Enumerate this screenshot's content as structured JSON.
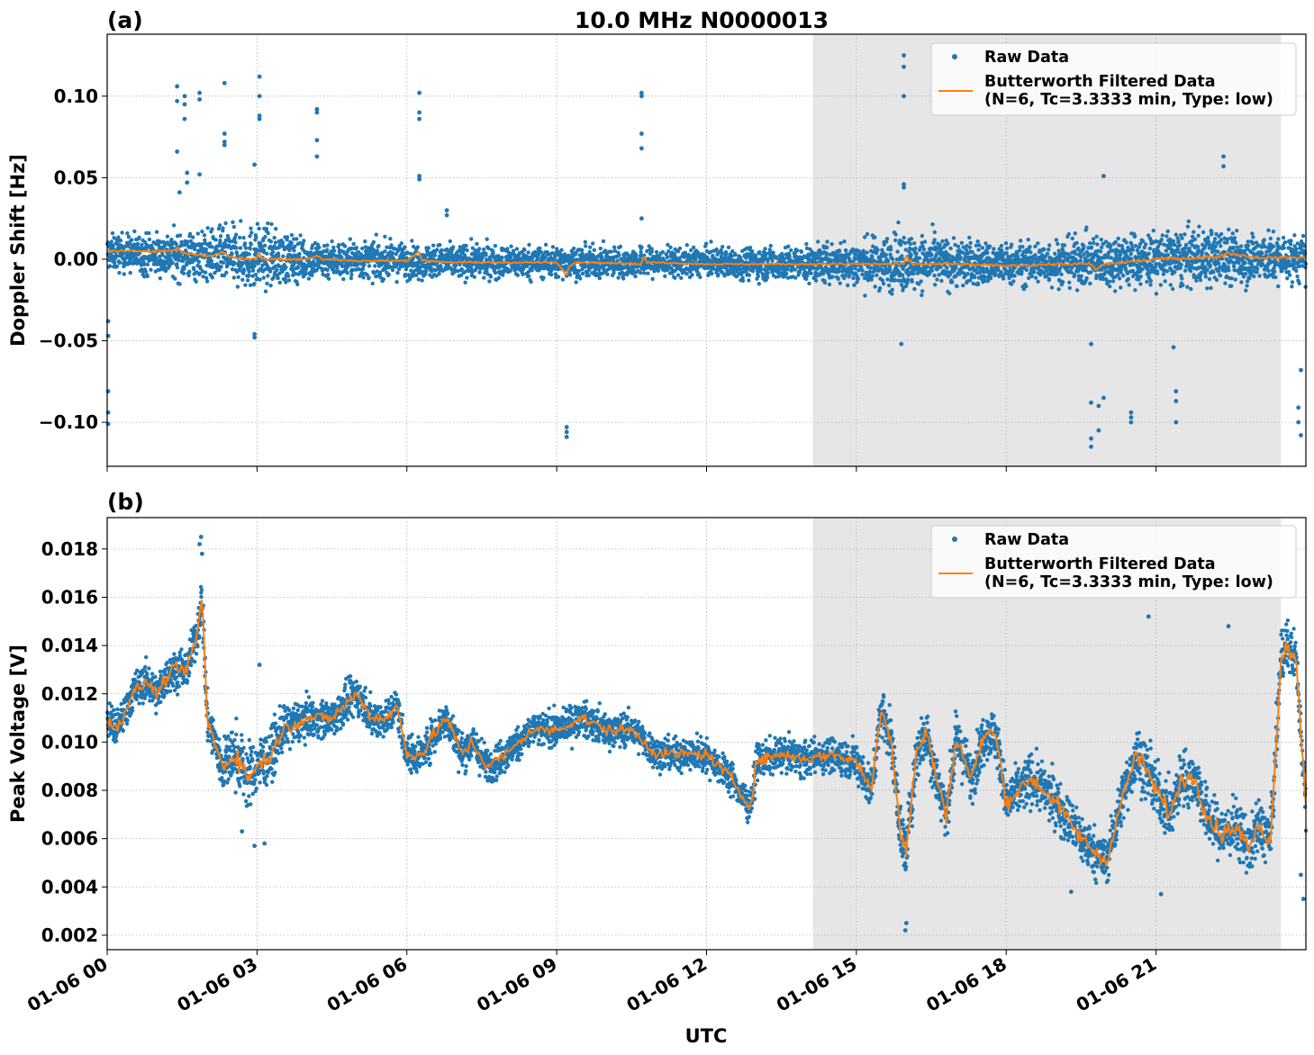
{
  "figure": {
    "title": "10.0 MHz N0000013",
    "xlabel": "UTC"
  },
  "colors": {
    "raw": "#1f77b4",
    "filtered": "#ff7f0e",
    "shade": "#e6e6e6",
    "grid": "#b0b0b0"
  },
  "chart_data": [
    {
      "type": "scatter",
      "panel_label": "(a)",
      "title": "10.0 MHz N0000013",
      "xlabel": "",
      "ylabel": "Doppler Shift [Hz]",
      "x_unit": "hours UTC on 01-06",
      "xlim": [
        0,
        24
      ],
      "ylim": [
        -0.127,
        0.138
      ],
      "yticks": [
        0.1,
        0.05,
        0.0,
        -0.05,
        -0.1
      ],
      "ytick_labels": [
        "0.10",
        "0.05",
        "0.00",
        "−0.05",
        "−0.10"
      ],
      "grid": true,
      "legend_position": "top-right",
      "shaded_region_x": [
        14.13,
        23.5
      ],
      "series": [
        {
          "name": "Raw Data",
          "kind": "points",
          "band": {
            "x": [
              0,
              2,
              3,
              4,
              6,
              9,
              12,
              14,
              15.9,
              18,
              20,
              22,
              24
            ],
            "center": [
              0.004,
              0.002,
              0.001,
              0.0,
              -0.001,
              -0.002,
              -0.002,
              -0.003,
              -0.002,
              -0.003,
              -0.001,
              0.001,
              0.0
            ],
            "half_width": [
              0.012,
              0.018,
              0.022,
              0.014,
              0.012,
              0.011,
              0.01,
              0.012,
              0.02,
              0.014,
              0.018,
              0.02,
              0.016
            ]
          },
          "outliers": [
            [
              0.02,
              -0.038
            ],
            [
              0.02,
              -0.047
            ],
            [
              0.02,
              -0.081
            ],
            [
              0.02,
              -0.094
            ],
            [
              0.02,
              -0.101
            ],
            [
              1.4,
              0.106
            ],
            [
              1.4,
              0.097
            ],
            [
              1.4,
              0.066
            ],
            [
              1.45,
              0.041
            ],
            [
              1.55,
              0.1
            ],
            [
              1.55,
              0.095
            ],
            [
              1.55,
              0.086
            ],
            [
              1.6,
              0.053
            ],
            [
              1.6,
              0.047
            ],
            [
              1.85,
              0.102
            ],
            [
              1.85,
              0.098
            ],
            [
              1.85,
              0.052
            ],
            [
              2.35,
              0.108
            ],
            [
              2.35,
              0.077
            ],
            [
              2.35,
              0.072
            ],
            [
              2.35,
              0.07
            ],
            [
              2.95,
              0.058
            ],
            [
              3.05,
              0.112
            ],
            [
              3.05,
              0.1
            ],
            [
              3.05,
              0.088
            ],
            [
              3.05,
              0.086
            ],
            [
              2.95,
              -0.046
            ],
            [
              2.95,
              -0.048
            ],
            [
              4.2,
              0.09
            ],
            [
              4.2,
              0.092
            ],
            [
              4.2,
              0.073
            ],
            [
              4.2,
              0.063
            ],
            [
              6.25,
              0.102
            ],
            [
              6.25,
              0.09
            ],
            [
              6.25,
              0.086
            ],
            [
              6.25,
              0.051
            ],
            [
              6.25,
              0.049
            ],
            [
              6.8,
              0.03
            ],
            [
              6.8,
              0.027
            ],
            [
              9.2,
              -0.103
            ],
            [
              9.2,
              -0.106
            ],
            [
              9.2,
              -0.109
            ],
            [
              10.7,
              0.102
            ],
            [
              10.7,
              0.1
            ],
            [
              10.7,
              0.077
            ],
            [
              10.7,
              0.068
            ],
            [
              10.7,
              0.025
            ],
            [
              15.95,
              0.125
            ],
            [
              15.95,
              0.118
            ],
            [
              15.95,
              0.1
            ],
            [
              15.95,
              0.046
            ],
            [
              15.95,
              0.044
            ],
            [
              15.9,
              -0.052
            ],
            [
              19.7,
              -0.052
            ],
            [
              19.7,
              -0.088
            ],
            [
              19.7,
              -0.11
            ],
            [
              19.7,
              -0.115
            ],
            [
              19.85,
              -0.09
            ],
            [
              19.85,
              -0.105
            ],
            [
              19.95,
              0.051
            ],
            [
              19.95,
              -0.085
            ],
            [
              20.5,
              -0.097
            ],
            [
              20.5,
              -0.094
            ],
            [
              20.5,
              -0.1
            ],
            [
              21.4,
              -0.081
            ],
            [
              21.4,
              -0.087
            ],
            [
              21.4,
              -0.1
            ],
            [
              21.35,
              -0.054
            ],
            [
              22.35,
              0.063
            ],
            [
              22.35,
              0.057
            ],
            [
              23.9,
              -0.068
            ],
            [
              23.85,
              -0.091
            ],
            [
              23.85,
              -0.1
            ],
            [
              23.9,
              -0.108
            ]
          ]
        },
        {
          "name": "Butterworth Filtered Data\n(N=6, Tc=3.3333 min, Type: low)",
          "kind": "line",
          "x": [
            0,
            0.5,
            1,
            1.3,
            1.4,
            1.5,
            2,
            2.35,
            2.5,
            3,
            3.05,
            3.1,
            4,
            4.2,
            4.3,
            5,
            6,
            6.25,
            6.3,
            6.4,
            7,
            8,
            9,
            9.2,
            9.25,
            9.4,
            10,
            10.7,
            10.75,
            10.8,
            11,
            12,
            13,
            14,
            15,
            15.95,
            16,
            16.1,
            17,
            18,
            19,
            19.7,
            19.8,
            19.9,
            20,
            21,
            22,
            22.35,
            22.4,
            23,
            24
          ],
          "y": [
            0.005,
            0.005,
            0.005,
            0.005,
            0.007,
            0.004,
            0.002,
            0.004,
            0.001,
            0.0,
            0.005,
            0.0,
            0.0,
            0.002,
            0.0,
            -0.001,
            -0.001,
            0.005,
            -0.001,
            -0.001,
            -0.002,
            -0.002,
            -0.002,
            -0.01,
            -0.004,
            -0.002,
            -0.002,
            -0.003,
            0.002,
            -0.002,
            -0.002,
            -0.003,
            -0.003,
            -0.003,
            -0.003,
            -0.003,
            0.002,
            -0.003,
            -0.003,
            -0.004,
            -0.003,
            -0.003,
            -0.007,
            -0.004,
            -0.003,
            0.0,
            0.001,
            0.002,
            0.004,
            0.001,
            0.001
          ]
        }
      ]
    },
    {
      "type": "scatter",
      "panel_label": "(b)",
      "title": "",
      "xlabel": "UTC",
      "ylabel": "Peak Voltage [V]",
      "x_unit": "hours UTC on 01-06",
      "xlim": [
        0,
        24
      ],
      "ylim": [
        0.0014,
        0.0193
      ],
      "yticks": [
        0.018,
        0.016,
        0.014,
        0.012,
        0.01,
        0.008,
        0.006,
        0.004,
        0.002
      ],
      "ytick_labels": [
        "0.018",
        "0.016",
        "0.014",
        "0.012",
        "0.010",
        "0.008",
        "0.006",
        "0.004",
        "0.002"
      ],
      "xticks": [
        0,
        3,
        6,
        9,
        12,
        15,
        18,
        21
      ],
      "xtick_labels": [
        "01-06 00",
        "01-06 03",
        "01-06 06",
        "01-06 09",
        "01-06 12",
        "01-06 15",
        "01-06 18",
        "01-06 21"
      ],
      "grid": true,
      "legend_position": "top-right",
      "shaded_region_x": [
        14.13,
        23.5
      ],
      "series": [
        {
          "name": "Raw Data",
          "kind": "points",
          "band": {
            "x": [
              0,
              0.2,
              0.5,
              0.8,
              1.0,
              1.3,
              1.6,
              1.8,
              1.9,
              2.0,
              2.3,
              2.6,
              2.8,
              3.0,
              3.3,
              3.5,
              4.0,
              4.5,
              5.0,
              5.3,
              5.6,
              5.8,
              6.0,
              6.3,
              6.6,
              6.8,
              7.1,
              7.3,
              7.6,
              8.0,
              8.5,
              9.0,
              9.5,
              10.0,
              10.5,
              11.0,
              11.5,
              12.0,
              12.5,
              12.8,
              12.9,
              13.0,
              13.5,
              14.0,
              14.5,
              15.0,
              15.3,
              15.5,
              15.7,
              15.9,
              16.0,
              16.2,
              16.4,
              16.6,
              16.8,
              17.0,
              17.3,
              17.6,
              17.8,
              18.0,
              18.5,
              19.0,
              19.5,
              20.0,
              20.3,
              20.6,
              20.9,
              21.0,
              21.3,
              21.5,
              21.8,
              22.0,
              22.3,
              22.6,
              22.9,
              23.0,
              23.3,
              23.5,
              23.6,
              23.8,
              24.0
            ],
            "center": [
              0.011,
              0.0105,
              0.012,
              0.0125,
              0.012,
              0.013,
              0.013,
              0.0145,
              0.016,
              0.011,
              0.009,
              0.0095,
              0.0085,
              0.009,
              0.0095,
              0.0105,
              0.011,
              0.011,
              0.012,
              0.011,
              0.011,
              0.0115,
              0.0095,
              0.0095,
              0.0105,
              0.011,
              0.0095,
              0.01,
              0.009,
              0.0095,
              0.0105,
              0.0105,
              0.011,
              0.0105,
              0.0105,
              0.0095,
              0.0095,
              0.0095,
              0.0085,
              0.0075,
              0.0075,
              0.0092,
              0.0095,
              0.0093,
              0.0095,
              0.0092,
              0.008,
              0.0115,
              0.01,
              0.006,
              0.0055,
              0.0095,
              0.0105,
              0.0085,
              0.007,
              0.0102,
              0.0085,
              0.0105,
              0.0102,
              0.0075,
              0.0085,
              0.0075,
              0.006,
              0.005,
              0.0075,
              0.0095,
              0.0085,
              0.008,
              0.007,
              0.0085,
              0.0085,
              0.007,
              0.0062,
              0.0065,
              0.0055,
              0.0065,
              0.006,
              0.0135,
              0.014,
              0.0135,
              0.0075
            ],
            "half_width": [
              0.0009,
              0.0009,
              0.0009,
              0.0009,
              0.0009,
              0.0009,
              0.0009,
              0.001,
              0.0012,
              0.0012,
              0.0012,
              0.0015,
              0.0015,
              0.0013,
              0.0012,
              0.0011,
              0.0009,
              0.0009,
              0.0009,
              0.0009,
              0.0009,
              0.0009,
              0.0009,
              0.0009,
              0.0009,
              0.0009,
              0.0009,
              0.0009,
              0.0009,
              0.0008,
              0.0008,
              0.0008,
              0.0008,
              0.0008,
              0.0008,
              0.0008,
              0.0008,
              0.0008,
              0.0008,
              0.0008,
              0.0008,
              0.0008,
              0.0008,
              0.0008,
              0.0008,
              0.0009,
              0.0011,
              0.0011,
              0.0012,
              0.0014,
              0.0014,
              0.0013,
              0.0013,
              0.0012,
              0.0012,
              0.0012,
              0.0012,
              0.0012,
              0.0012,
              0.0012,
              0.0012,
              0.0012,
              0.0012,
              0.0011,
              0.0012,
              0.0014,
              0.0013,
              0.0013,
              0.0013,
              0.0013,
              0.0013,
              0.0013,
              0.0013,
              0.0013,
              0.0013,
              0.0013,
              0.0013,
              0.0013,
              0.0012,
              0.0012,
              0.0012
            ]
          },
          "outliers": [
            [
              1.88,
              0.0185
            ],
            [
              1.85,
              0.0182
            ],
            [
              1.9,
              0.0178
            ],
            [
              2.7,
              0.0063
            ],
            [
              2.95,
              0.0057
            ],
            [
              3.15,
              0.0058
            ],
            [
              3.05,
              0.0132
            ],
            [
              15.98,
              0.0022
            ],
            [
              16.0,
              0.0025
            ],
            [
              19.3,
              0.0038
            ],
            [
              21.1,
              0.0037
            ],
            [
              20.85,
              0.0152
            ],
            [
              22.45,
              0.0148
            ],
            [
              23.95,
              0.0035
            ],
            [
              23.9,
              0.0045
            ]
          ]
        },
        {
          "name": "Butterworth Filtered Data\n(N=6, Tc=3.3333 min, Type: low)",
          "kind": "line",
          "x": [
            0,
            0.2,
            0.5,
            0.8,
            1.0,
            1.3,
            1.6,
            1.8,
            1.9,
            2.0,
            2.3,
            2.6,
            2.8,
            3.0,
            3.3,
            3.5,
            4.0,
            4.5,
            5.0,
            5.3,
            5.6,
            5.8,
            6.0,
            6.3,
            6.6,
            6.8,
            7.1,
            7.3,
            7.6,
            8.0,
            8.5,
            9.0,
            9.5,
            10.0,
            10.5,
            11.0,
            11.5,
            12.0,
            12.5,
            12.8,
            12.9,
            13.0,
            13.5,
            14.0,
            14.5,
            15.0,
            15.3,
            15.5,
            15.7,
            15.9,
            16.0,
            16.2,
            16.4,
            16.6,
            16.8,
            17.0,
            17.3,
            17.6,
            17.8,
            18.0,
            18.5,
            19.0,
            19.5,
            20.0,
            20.3,
            20.6,
            20.9,
            21.0,
            21.3,
            21.5,
            21.8,
            22.0,
            22.3,
            22.6,
            22.9,
            23.0,
            23.3,
            23.5,
            23.6,
            23.8,
            24.0
          ],
          "y": [
            0.011,
            0.0105,
            0.012,
            0.0125,
            0.012,
            0.013,
            0.013,
            0.0145,
            0.016,
            0.011,
            0.009,
            0.0095,
            0.0085,
            0.009,
            0.0095,
            0.0105,
            0.011,
            0.011,
            0.012,
            0.011,
            0.011,
            0.0115,
            0.0095,
            0.0095,
            0.0105,
            0.011,
            0.0095,
            0.01,
            0.009,
            0.0095,
            0.0105,
            0.0105,
            0.011,
            0.0105,
            0.0105,
            0.0095,
            0.0095,
            0.0095,
            0.0085,
            0.0075,
            0.0075,
            0.0092,
            0.0095,
            0.0093,
            0.0095,
            0.0092,
            0.008,
            0.0115,
            0.01,
            0.006,
            0.0055,
            0.0095,
            0.0105,
            0.0085,
            0.007,
            0.0102,
            0.0085,
            0.0105,
            0.0102,
            0.0075,
            0.0085,
            0.0075,
            0.006,
            0.005,
            0.0075,
            0.0095,
            0.0085,
            0.008,
            0.007,
            0.0085,
            0.0085,
            0.007,
            0.0062,
            0.0065,
            0.0055,
            0.0065,
            0.006,
            0.0135,
            0.014,
            0.0135,
            0.0075
          ]
        }
      ]
    }
  ]
}
